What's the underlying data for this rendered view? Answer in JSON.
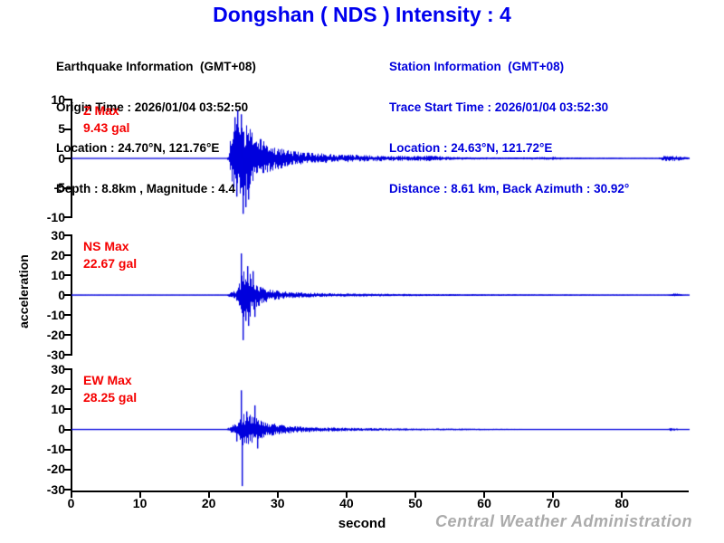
{
  "title": "Dongshan ( NDS ) Intensity : 4",
  "earthquake_info": {
    "heading": "Earthquake Information  (GMT+08)",
    "lines": [
      "Origin Time : 2026/01/04 03:52:50",
      "Location : 24.70°N, 121.76°E",
      "Depth : 8.8km , Magnitude : 4.4"
    ]
  },
  "station_info": {
    "heading": "Station Information  (GMT+08)",
    "lines": [
      "Trace Start Time : 2026/01/04 03:52:30",
      "Location : 24.63°N, 121.72°E",
      "Distance : 8.61 km, Back Azimuth : 30.92°"
    ]
  },
  "ylabel": "acceleration",
  "xlabel": "second",
  "watermark": "Central Weather Administration",
  "colors": {
    "title": "#0000EE",
    "station_text": "#0000DD",
    "quake_text": "#000000",
    "max_text": "#F50000",
    "trace": "#0000DD",
    "axis": "#000000",
    "watermark": "#ABABAB"
  },
  "chart_data": {
    "type": "line",
    "title": "Dongshan ( NDS ) Intensity : 4",
    "xlabel": "second",
    "ylabel": "acceleration",
    "x_axis": {
      "ticks": [
        0,
        10,
        20,
        30,
        40,
        50,
        60,
        70,
        80
      ],
      "range_s": [
        0,
        89.7
      ],
      "units": "second"
    },
    "series": [
      {
        "name": "Z",
        "max_label": "Z Max",
        "max_value": "9.43 gal",
        "peak_positive_gal": 8.2,
        "peak_negative_gal": -9.43,
        "onset_s": 22.6,
        "ylim": [
          -10,
          10
        ],
        "yticks": [
          10,
          5,
          0,
          -5,
          -10
        ],
        "envelope": [
          [
            0,
            0.05
          ],
          [
            22.5,
            0.05
          ],
          [
            22.8,
            0.9
          ],
          [
            23.0,
            3.0
          ],
          [
            23.4,
            4.5
          ],
          [
            23.8,
            6.0
          ],
          [
            24.3,
            6.8
          ],
          [
            24.9,
            6.5
          ],
          [
            25.5,
            5.5
          ],
          [
            26.3,
            4.5
          ],
          [
            27.3,
            3.4
          ],
          [
            28.3,
            2.6
          ],
          [
            29.5,
            2.0
          ],
          [
            31,
            1.5
          ],
          [
            33,
            1.1
          ],
          [
            35.5,
            0.9
          ],
          [
            38,
            0.75
          ],
          [
            41,
            0.6
          ],
          [
            44,
            0.5
          ],
          [
            47,
            0.45
          ],
          [
            50,
            0.4
          ],
          [
            52.5,
            0.5
          ],
          [
            54,
            0.3
          ],
          [
            57,
            0.22
          ],
          [
            60,
            0.18
          ],
          [
            64,
            0.15
          ],
          [
            68,
            0.22
          ],
          [
            70,
            0.28
          ],
          [
            71.5,
            0.15
          ],
          [
            76,
            0.1
          ],
          [
            80,
            0.08
          ],
          [
            85,
            0.08
          ],
          [
            86,
            0.45
          ],
          [
            87,
            0.5
          ],
          [
            88,
            0.4
          ],
          [
            89,
            0.25
          ],
          [
            89.5,
            0.15
          ]
        ],
        "spikes": [
          [
            23.7,
            7.0
          ],
          [
            23.9,
            -6.5
          ],
          [
            24.1,
            8.2
          ],
          [
            24.6,
            7.5
          ],
          [
            24.9,
            -9.43
          ],
          [
            25.2,
            -8.3
          ],
          [
            25.6,
            -7.0
          ]
        ]
      },
      {
        "name": "NS",
        "max_label": "NS Max",
        "max_value": "22.67 gal",
        "peak_positive_gal": 20.9,
        "peak_negative_gal": -22.67,
        "onset_s": 22.6,
        "ylim": [
          -30,
          30
        ],
        "yticks": [
          30,
          20,
          10,
          0,
          -10,
          -20,
          -30
        ],
        "envelope": [
          [
            0,
            0.12
          ],
          [
            22.5,
            0.12
          ],
          [
            22.8,
            1.0
          ],
          [
            23.2,
            1.8
          ],
          [
            23.8,
            2.5
          ],
          [
            24.2,
            5
          ],
          [
            24.5,
            9
          ],
          [
            24.8,
            13
          ],
          [
            25.1,
            11
          ],
          [
            25.5,
            12
          ],
          [
            25.9,
            11
          ],
          [
            26.4,
            8
          ],
          [
            27,
            6
          ],
          [
            27.8,
            4.2
          ],
          [
            28.8,
            3
          ],
          [
            30,
            2.2
          ],
          [
            31.5,
            1.7
          ],
          [
            33.5,
            1.3
          ],
          [
            36,
            1.0
          ],
          [
            39,
            0.85
          ],
          [
            43,
            0.7
          ],
          [
            47,
            0.6
          ],
          [
            52,
            0.5
          ],
          [
            57,
            0.4
          ],
          [
            62,
            0.35
          ],
          [
            68,
            0.3
          ],
          [
            74,
            0.25
          ],
          [
            80,
            0.2
          ],
          [
            86.5,
            0.15
          ],
          [
            87.2,
            0.9
          ],
          [
            88,
            0.7
          ],
          [
            88.8,
            0.2
          ],
          [
            89.5,
            0.15
          ]
        ],
        "spikes": [
          [
            24.6,
            20.9
          ],
          [
            24.8,
            -22.67
          ],
          [
            25.2,
            -13
          ],
          [
            25.5,
            14.5
          ],
          [
            25.65,
            -15.5
          ],
          [
            26.3,
            12
          ],
          [
            26.5,
            -11
          ]
        ]
      },
      {
        "name": "EW",
        "max_label": "EW Max",
        "max_value": "28.25 gal",
        "peak_positive_gal": 19.5,
        "peak_negative_gal": -28.25,
        "onset_s": 22.6,
        "ylim": [
          -30,
          30
        ],
        "yticks": [
          30,
          20,
          10,
          0,
          -10,
          -20,
          -30
        ],
        "envelope": [
          [
            0,
            0.12
          ],
          [
            22.5,
            0.12
          ],
          [
            22.8,
            1.2
          ],
          [
            23.3,
            2.2
          ],
          [
            23.9,
            3.2
          ],
          [
            24.4,
            5
          ],
          [
            24.8,
            8
          ],
          [
            25.3,
            7
          ],
          [
            25.9,
            7.5
          ],
          [
            26.5,
            6.5
          ],
          [
            27.2,
            5
          ],
          [
            28,
            4
          ],
          [
            29,
            3.2
          ],
          [
            30.3,
            2.4
          ],
          [
            31.8,
            1.8
          ],
          [
            33.5,
            1.4
          ],
          [
            36,
            1.1
          ],
          [
            39,
            0.9
          ],
          [
            42,
            0.75
          ],
          [
            46,
            0.6
          ],
          [
            50,
            0.5
          ],
          [
            55,
            0.45
          ],
          [
            60,
            0.35
          ],
          [
            64,
            0.28
          ],
          [
            68,
            0.2
          ],
          [
            72,
            0.15
          ],
          [
            78,
            0.12
          ],
          [
            86.3,
            0.1
          ],
          [
            86.9,
            0.8
          ],
          [
            87.6,
            0.6
          ],
          [
            88.4,
            0.15
          ],
          [
            89.5,
            0.1
          ]
        ],
        "spikes": [
          [
            23.9,
            -6
          ],
          [
            24.6,
            19.5
          ],
          [
            24.75,
            -28.25
          ],
          [
            25.4,
            9
          ],
          [
            26.6,
            12
          ],
          [
            26.9,
            -9.5
          ]
        ]
      }
    ]
  }
}
